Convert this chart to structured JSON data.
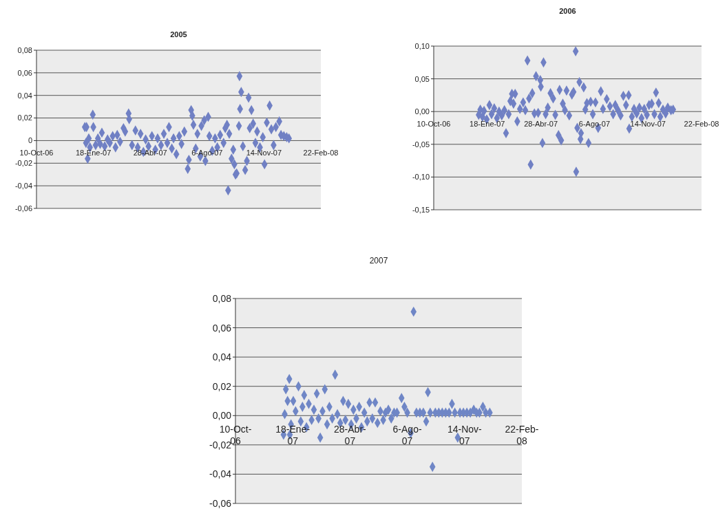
{
  "chart_data": [
    {
      "type": "scatter",
      "title": "2005",
      "marker": "diamond",
      "grid": "y",
      "xlim": [
        "2006-10-10",
        "2008-02-22"
      ],
      "xticks": [
        {
          "value": "2006-10-10",
          "label": "10-Oct-06"
        },
        {
          "value": "2007-01-18",
          "label": "18-Ene-07"
        },
        {
          "value": "2007-04-28",
          "label": "28-Abr-07"
        },
        {
          "value": "2007-08-06",
          "label": "6-Ago-07"
        },
        {
          "value": "2007-11-14",
          "label": "14-Nov-07"
        },
        {
          "value": "2008-02-22",
          "label": "22-Feb-08"
        }
      ],
      "ylim": [
        -0.06,
        0.08
      ],
      "yticks": [
        {
          "value": 0.08,
          "label": "0,08"
        },
        {
          "value": 0.06,
          "label": "0,06"
        },
        {
          "value": 0.04,
          "label": "0,04"
        },
        {
          "value": 0.02,
          "label": "0,02"
        },
        0,
        {
          "value": -0.02,
          "label": "-0,02"
        },
        {
          "value": -0.04,
          "label": "-0,04"
        },
        {
          "value": -0.06,
          "label": "-0,06"
        }
      ],
      "series": [
        {
          "color": "#7080c4",
          "x": [
            "2007-01-03",
            "2007-01-05",
            "2007-01-06",
            "2007-01-08",
            "2007-01-10",
            "2007-01-12",
            "2007-01-17",
            "2007-01-18",
            "2007-01-22",
            "2007-01-26",
            "2007-01-30",
            "2007-02-02",
            "2007-02-07",
            "2007-02-12",
            "2007-02-16",
            "2007-02-21",
            "2007-02-26",
            "2007-03-01",
            "2007-03-06",
            "2007-03-12",
            "2007-03-15",
            "2007-03-21",
            "2007-03-22",
            "2007-03-27",
            "2007-04-02",
            "2007-04-06",
            "2007-04-11",
            "2007-04-16",
            "2007-04-20",
            "2007-04-25",
            "2007-05-01",
            "2007-05-07",
            "2007-05-11",
            "2007-05-17",
            "2007-05-22",
            "2007-05-28",
            "2007-05-31",
            "2007-06-05",
            "2007-06-08",
            "2007-06-13",
            "2007-06-18",
            "2007-06-22",
            "2007-06-27",
            "2007-07-03",
            "2007-07-05",
            "2007-07-09",
            "2007-07-11",
            "2007-07-13",
            "2007-07-17",
            "2007-07-20",
            "2007-07-25",
            "2007-07-27",
            "2007-08-01",
            "2007-08-03",
            "2007-08-08",
            "2007-08-10",
            "2007-08-15",
            "2007-08-20",
            "2007-08-24",
            "2007-08-29",
            "2007-09-04",
            "2007-09-07",
            "2007-09-10",
            "2007-09-12",
            "2007-09-14",
            "2007-09-18",
            "2007-09-21",
            "2007-09-23",
            "2007-09-25",
            "2007-09-27",
            "2007-10-01",
            "2007-10-02",
            "2007-10-03",
            "2007-10-05",
            "2007-10-08",
            "2007-10-12",
            "2007-10-15",
            "2007-10-18",
            "2007-10-20",
            "2007-10-23",
            "2007-10-26",
            "2007-10-30",
            "2007-11-02",
            "2007-11-07",
            "2007-11-12",
            "2007-11-15",
            "2007-11-19",
            "2007-11-24",
            "2007-11-27",
            "2007-12-01",
            "2007-12-05",
            "2007-12-11",
            "2007-12-14",
            "2007-12-19",
            "2007-12-24",
            "2007-12-28"
          ],
          "values": [
            0.012,
            -0.002,
            0.012,
            -0.016,
            0.002,
            -0.006,
            0.023,
            0.012,
            -0.004,
            0.002,
            -0.003,
            0.007,
            -0.005,
            0.001,
            -0.002,
            0.004,
            -0.006,
            0.005,
            -0.001,
            0.011,
            0.008,
            0.024,
            0.019,
            -0.004,
            0.009,
            -0.006,
            0.006,
            -0.01,
            0.001,
            -0.005,
            0.004,
            -0.008,
            0.002,
            -0.004,
            0.006,
            -0.002,
            0.012,
            -0.007,
            0.002,
            -0.012,
            0.004,
            -0.003,
            0.008,
            -0.025,
            -0.017,
            0.027,
            0.022,
            0.014,
            -0.007,
            0.006,
            -0.014,
            0.013,
            0.018,
            -0.018,
            0.021,
            0.004,
            -0.009,
            0.002,
            -0.006,
            0.005,
            -0.002,
            0.011,
            0.014,
            -0.044,
            0.006,
            -0.016,
            -0.008,
            -0.021,
            -0.03,
            -0.029,
            0.013,
            0.057,
            0.028,
            0.043,
            -0.005,
            -0.026,
            -0.018,
            0.038,
            0.011,
            0.027,
            0.015,
            -0.002,
            0.008,
            -0.006,
            0.003,
            -0.021,
            0.016,
            0.031,
            0.01,
            -0.004,
            0.012,
            0.017,
            0.005,
            0.004,
            0.003,
            0.002
          ]
        }
      ]
    },
    {
      "type": "scatter",
      "title": "2006",
      "marker": "diamond",
      "grid": "y",
      "xlim": [
        "2006-10-10",
        "2008-02-22"
      ],
      "xticks": [
        {
          "value": "2006-10-10",
          "label": "10-Oct-06"
        },
        {
          "value": "2007-01-18",
          "label": "18-Ene-07"
        },
        {
          "value": "2007-04-28",
          "label": "28-Abr-07"
        },
        {
          "value": "2007-08-06",
          "label": "6-Ago-07"
        },
        {
          "value": "2007-11-14",
          "label": "14-Nov-07"
        },
        {
          "value": "2008-02-22",
          "label": "22-Feb-08"
        }
      ],
      "ylim": [
        -0.15,
        0.1
      ],
      "yticks": [
        {
          "value": 0.1,
          "label": "0,10"
        },
        {
          "value": 0.05,
          "label": "0,05"
        },
        {
          "value": 0,
          "label": "0,00"
        },
        {
          "value": -0.05,
          "label": "-0,05"
        },
        {
          "value": -0.1,
          "label": "-0,10"
        },
        {
          "value": -0.15,
          "label": "-0,15"
        }
      ],
      "series": [
        {
          "color": "#7080c4",
          "x": [
            "2007-01-02",
            "2007-01-05",
            "2007-01-09",
            "2007-01-12",
            "2007-01-17",
            "2007-01-22",
            "2007-01-26",
            "2007-01-31",
            "2007-02-05",
            "2007-02-09",
            "2007-02-14",
            "2007-02-19",
            "2007-02-22",
            "2007-02-27",
            "2007-03-02",
            "2007-03-05",
            "2007-03-08",
            "2007-03-11",
            "2007-03-15",
            "2007-03-20",
            "2007-03-26",
            "2007-03-30",
            "2007-04-03",
            "2007-04-06",
            "2007-04-09",
            "2007-04-12",
            "2007-04-16",
            "2007-04-19",
            "2007-04-23",
            "2007-04-27",
            "2007-04-28",
            "2007-05-01",
            "2007-05-03",
            "2007-05-07",
            "2007-05-11",
            "2007-05-16",
            "2007-05-21",
            "2007-05-25",
            "2007-05-31",
            "2007-06-02",
            "2007-06-05",
            "2007-06-08",
            "2007-06-12",
            "2007-06-15",
            "2007-06-20",
            "2007-06-25",
            "2007-06-28",
            "2007-07-02",
            "2007-07-03",
            "2007-07-05",
            "2007-07-09",
            "2007-07-11",
            "2007-07-12",
            "2007-07-17",
            "2007-07-20",
            "2007-07-23",
            "2007-07-26",
            "2007-07-30",
            "2007-08-03",
            "2007-08-08",
            "2007-08-13",
            "2007-08-18",
            "2007-08-22",
            "2007-08-29",
            "2007-09-04",
            "2007-09-10",
            "2007-09-14",
            "2007-09-19",
            "2007-09-24",
            "2007-09-29",
            "2007-10-04",
            "2007-10-09",
            "2007-10-10",
            "2007-10-15",
            "2007-10-19",
            "2007-10-24",
            "2007-10-29",
            "2007-11-02",
            "2007-11-07",
            "2007-11-12",
            "2007-11-16",
            "2007-11-21",
            "2007-11-26",
            "2007-11-29",
            "2007-12-04",
            "2007-12-07",
            "2007-12-12",
            "2007-12-17",
            "2007-12-21",
            "2007-12-27",
            "2007-12-31"
          ],
          "values": [
            -0.005,
            0.003,
            -0.008,
            0.001,
            -0.012,
            0.01,
            -0.004,
            0.005,
            -0.01,
            0.0,
            -0.006,
            0.002,
            -0.033,
            -0.004,
            0.016,
            0.027,
            0.012,
            0.027,
            -0.015,
            0.004,
            0.014,
            0.002,
            0.078,
            0.02,
            -0.081,
            0.028,
            -0.003,
            0.054,
            -0.002,
            0.048,
            0.038,
            -0.048,
            0.075,
            -0.004,
            0.006,
            0.028,
            0.02,
            -0.005,
            -0.036,
            0.033,
            -0.044,
            0.012,
            0.002,
            0.032,
            -0.006,
            0.026,
            0.03,
            0.092,
            -0.092,
            -0.025,
            0.045,
            -0.042,
            -0.033,
            0.037,
            0.003,
            0.013,
            -0.048,
            0.015,
            -0.004,
            0.014,
            -0.025,
            0.031,
            0.004,
            0.019,
            0.008,
            -0.004,
            0.01,
            0.002,
            -0.006,
            0.024,
            0.01,
            0.025,
            -0.026,
            -0.008,
            0.004,
            -0.003,
            0.006,
            -0.01,
            0.004,
            -0.005,
            0.01,
            0.012,
            -0.004,
            0.029,
            0.013,
            -0.008,
            0.003,
            -0.003,
            0.006,
            0.002,
            0.003
          ]
        }
      ]
    },
    {
      "type": "scatter",
      "title": "2007",
      "marker": "diamond",
      "grid": "y",
      "xlim": [
        "2006-10-10",
        "2008-02-22"
      ],
      "xticks": [
        {
          "value": "2006-10-10",
          "label": "10-Oct-06"
        },
        {
          "value": "2007-01-18",
          "label": "18-Ene-07"
        },
        {
          "value": "2007-04-28",
          "label": "28-Abr-07"
        },
        {
          "value": "2007-08-06",
          "label": "6-Ago-07"
        },
        {
          "value": "2007-11-14",
          "label": "14-Nov-07"
        },
        {
          "value": "2008-02-22",
          "label": "22-Feb-08"
        }
      ],
      "ylim": [
        -0.06,
        0.08
      ],
      "yticks": [
        {
          "value": 0.08,
          "label": "0,08"
        },
        {
          "value": 0.06,
          "label": "0,06"
        },
        {
          "value": 0.04,
          "label": "0,04"
        },
        {
          "value": 0.02,
          "label": "0,02"
        },
        {
          "value": 0,
          "label": "0,00"
        },
        {
          "value": -0.02,
          "label": "-0,02"
        },
        {
          "value": -0.04,
          "label": "-0,04"
        },
        {
          "value": -0.06,
          "label": "-0,06"
        }
      ],
      "series": [
        {
          "color": "#6f86c6",
          "x": [
            "2007-01-02",
            "2007-01-04",
            "2007-01-06",
            "2007-01-09",
            "2007-01-12",
            "2007-01-13",
            "2007-01-15",
            "2007-01-19",
            "2007-01-23",
            "2007-01-28",
            "2007-02-01",
            "2007-02-04",
            "2007-02-07",
            "2007-02-11",
            "2007-02-15",
            "2007-02-20",
            "2007-02-24",
            "2007-03-01",
            "2007-03-04",
            "2007-03-07",
            "2007-03-11",
            "2007-03-15",
            "2007-03-19",
            "2007-03-23",
            "2007-03-28",
            "2007-04-02",
            "2007-04-06",
            "2007-04-11",
            "2007-04-16",
            "2007-04-20",
            "2007-04-25",
            "2007-04-30",
            "2007-05-04",
            "2007-05-09",
            "2007-05-14",
            "2007-05-18",
            "2007-05-23",
            "2007-05-28",
            "2007-06-01",
            "2007-06-06",
            "2007-06-11",
            "2007-06-15",
            "2007-06-20",
            "2007-06-25",
            "2007-06-29",
            "2007-07-04",
            "2007-07-09",
            "2007-07-14",
            "2007-07-19",
            "2007-07-27",
            "2007-08-01",
            "2007-08-06",
            "2007-08-12",
            "2007-08-17",
            "2007-08-22",
            "2007-08-28",
            "2007-09-03",
            "2007-09-08",
            "2007-09-11",
            "2007-09-15",
            "2007-09-19",
            "2007-09-24",
            "2007-09-30",
            "2007-10-06",
            "2007-10-12",
            "2007-10-18",
            "2007-10-23",
            "2007-10-28",
            "2007-11-02",
            "2007-11-06",
            "2007-11-12",
            "2007-11-18",
            "2007-11-24",
            "2007-11-30",
            "2007-12-05",
            "2007-12-10",
            "2007-12-16",
            "2007-12-21",
            "2007-12-28"
          ],
          "values": [
            -0.013,
            0.001,
            0.018,
            0.01,
            0.025,
            -0.013,
            -0.006,
            0.01,
            0.003,
            0.02,
            -0.004,
            0.006,
            0.014,
            -0.008,
            0.008,
            -0.003,
            0.004,
            0.015,
            -0.002,
            -0.015,
            0.003,
            0.018,
            -0.006,
            0.006,
            -0.002,
            0.028,
            0.001,
            -0.005,
            0.01,
            -0.003,
            0.008,
            -0.006,
            0.004,
            -0.002,
            0.006,
            -0.008,
            0.002,
            -0.004,
            0.009,
            -0.002,
            0.009,
            -0.005,
            0.003,
            -0.003,
            0.002,
            0.004,
            -0.002,
            0.002,
            0.002,
            0.012,
            0.006,
            0.002,
            -0.012,
            0.071,
            0.002,
            0.002,
            0.002,
            -0.004,
            0.016,
            0.002,
            -0.035,
            0.002,
            0.002,
            0.002,
            0.002,
            0.002,
            0.008,
            0.002,
            -0.015,
            0.002,
            0.002,
            0.002,
            0.002,
            0.004,
            0.002,
            0.002,
            0.006,
            0.002,
            0.002
          ]
        }
      ]
    }
  ]
}
